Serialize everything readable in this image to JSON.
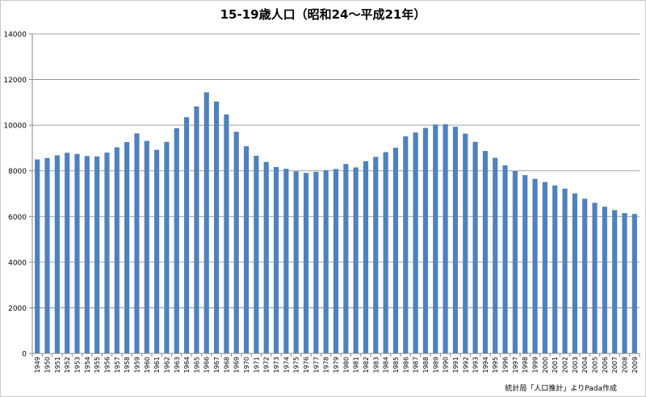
{
  "chart_data": {
    "type": "bar",
    "title": "15-19歳人口（昭和24～平成21年）",
    "note": "統計局「人口推計」よりPada作成",
    "xlabel": "",
    "ylabel": "",
    "ylim": [
      0,
      14000
    ],
    "yticks": [
      0,
      2000,
      4000,
      6000,
      8000,
      10000,
      12000,
      14000
    ],
    "grid": true,
    "legend": "none",
    "bar_color": "#4f81bd",
    "categories": [
      "1949",
      "1950",
      "1951",
      "1952",
      "1953",
      "1954",
      "1955",
      "1956",
      "1957",
      "1958",
      "1959",
      "1960",
      "1961",
      "1962",
      "1963",
      "1964",
      "1965",
      "1966",
      "1967",
      "1968",
      "1969",
      "1970",
      "1971",
      "1972",
      "1973",
      "1974",
      "1975",
      "1976",
      "1977",
      "1978",
      "1979",
      "1980",
      "1981",
      "1982",
      "1983",
      "1984",
      "1985",
      "1986",
      "1987",
      "1988",
      "1989",
      "1990",
      "1991",
      "1992",
      "1993",
      "1994",
      "1995",
      "1996",
      "1997",
      "1998",
      "1999",
      "2000",
      "2001",
      "2002",
      "2003",
      "2004",
      "2005",
      "2006",
      "2007",
      "2008",
      "2009"
    ],
    "values": [
      8500,
      8560,
      8680,
      8790,
      8740,
      8650,
      8630,
      8800,
      9030,
      9260,
      9640,
      9310,
      8920,
      9270,
      9870,
      10350,
      10820,
      11440,
      11040,
      10470,
      9710,
      9080,
      8660,
      8390,
      8170,
      8090,
      7980,
      7910,
      7960,
      8030,
      8080,
      8300,
      8150,
      8420,
      8610,
      8820,
      9010,
      9510,
      9680,
      9880,
      10030,
      10040,
      9930,
      9630,
      9270,
      8870,
      8570,
      8240,
      7990,
      7810,
      7650,
      7510,
      7360,
      7220,
      7010,
      6780,
      6600,
      6430,
      6280,
      6150,
      6110
    ]
  }
}
